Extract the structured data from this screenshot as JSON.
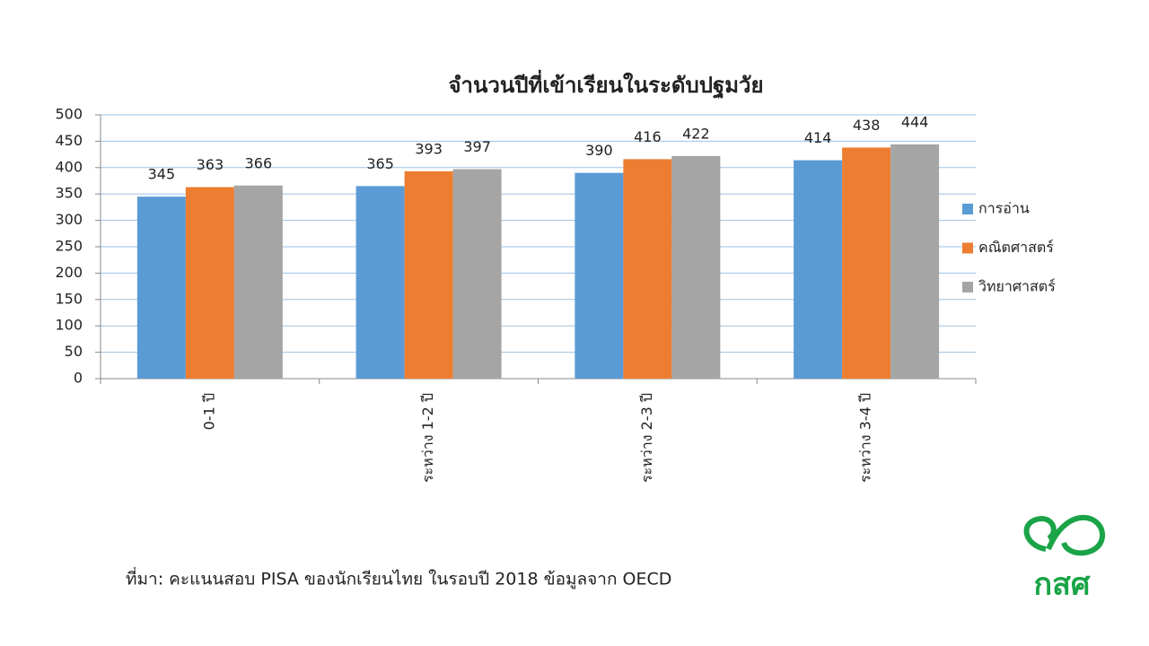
{
  "chart_data": {
    "type": "bar",
    "title": "จำนวนปีที่เข้าเรียนในระดับปฐมวัย",
    "categories": [
      "0-1 ปี",
      "ระหว่าง 1-2 ปี",
      "ระหว่าง 2-3 ปี",
      "ระหว่าง 3-4 ปี"
    ],
    "series": [
      {
        "name": "การอ่าน",
        "color": "#5b9bd5",
        "values": [
          345,
          365,
          390,
          414
        ]
      },
      {
        "name": "คณิตศาสตร์",
        "color": "#ed7d31",
        "values": [
          363,
          393,
          416,
          438
        ]
      },
      {
        "name": "วิทยาศาสตร์",
        "color": "#a5a5a5",
        "values": [
          366,
          397,
          422,
          444
        ]
      }
    ],
    "ylim": [
      0,
      500
    ],
    "yticks": [
      0,
      50,
      100,
      150,
      200,
      250,
      300,
      350,
      400,
      450,
      500
    ],
    "grid": true,
    "legend": "right",
    "source": "ที่มา: คะแนนสอบ PISA ของนักเรียนไทย ในรอบปี 2018 ข้อมูลจาก OECD",
    "logo_text": "กสศ"
  }
}
